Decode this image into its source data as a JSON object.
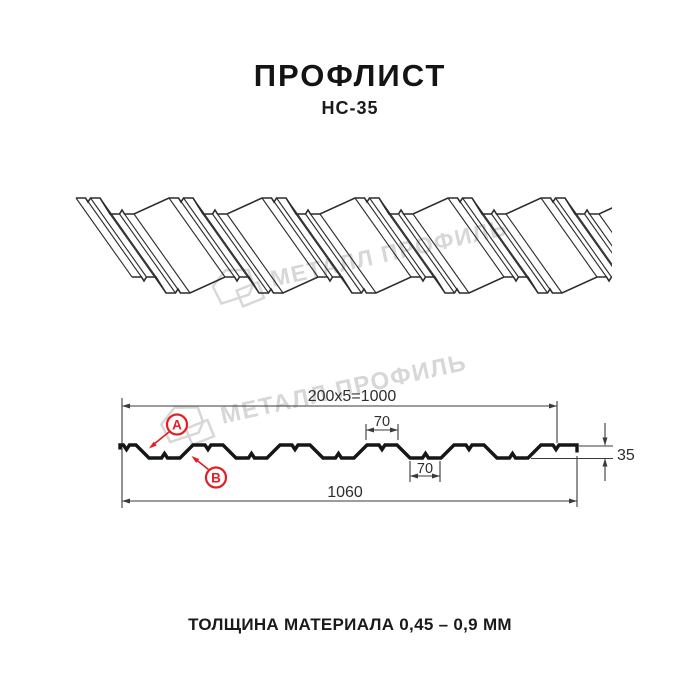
{
  "header": {
    "title": "ПРОФЛИСТ",
    "model": "НС-35"
  },
  "watermark": {
    "brand_text": "МЕТАЛЛ ПРОФИЛЬ"
  },
  "cross_section": {
    "dimensions": {
      "top_span_label": "200x5=1000",
      "crest_width_label": "70",
      "valley_width_label": "70",
      "height_label": "35",
      "overall_width_label": "1060"
    },
    "markers": {
      "a_label": "A",
      "b_label": "B"
    }
  },
  "footer": {
    "thickness_label": "ТОЛЩИНА МАТЕРИАЛА 0,45 – 0,9 ММ"
  },
  "colors": {
    "marker_red": "#e31e24",
    "profile_black": "#161616",
    "dim_gray": "#3a3a3a",
    "iso_line": "#2c2c2c",
    "watermark_gray": "#d7d7d7"
  }
}
